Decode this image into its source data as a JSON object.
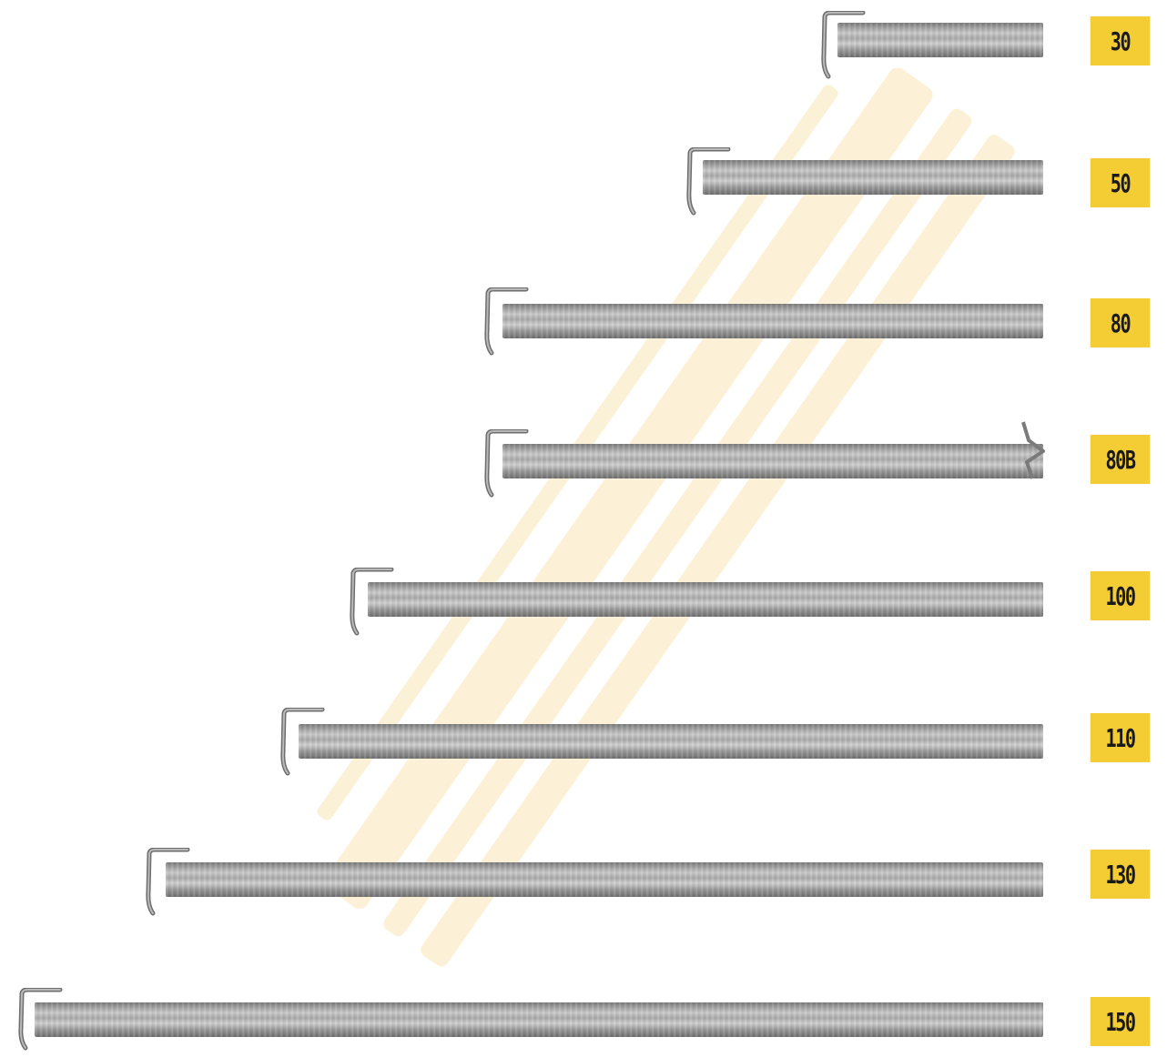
{
  "items": [
    {
      "label": "30",
      "length": 30
    },
    {
      "label": "50",
      "length": 50
    },
    {
      "label": "80",
      "length": 80
    },
    {
      "label": "80B",
      "length": 80,
      "variant": "barbed-end"
    },
    {
      "label": "100",
      "length": 100
    },
    {
      "label": "110",
      "length": 110
    },
    {
      "label": "130",
      "length": 130
    },
    {
      "label": "150",
      "length": 150
    }
  ],
  "colors": {
    "tag_background": "#f4cc33",
    "tag_text": "#1a1a1a",
    "rod_light": "#cfcfcf",
    "rod_dark": "#6f6f6f",
    "watermark": "#f6c44a"
  },
  "icons": {
    "rod": "hooked-steel-rod-icon",
    "hook": "hook-end-icon"
  }
}
